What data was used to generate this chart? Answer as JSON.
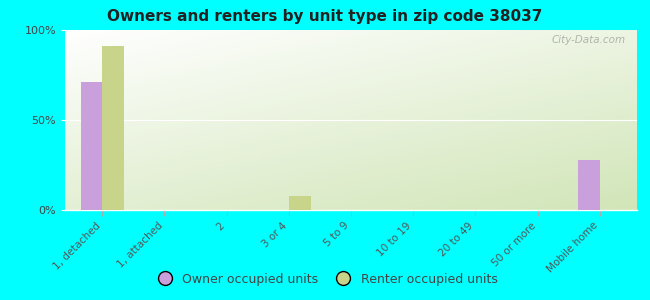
{
  "title": "Owners and renters by unit type in zip code 38037",
  "categories": [
    "1, detached",
    "1, attached",
    "2",
    "3 or 4",
    "5 to 9",
    "10 to 19",
    "20 to 49",
    "50 or more",
    "Mobile home"
  ],
  "owner_values": [
    71,
    0,
    0,
    0,
    0,
    0,
    0,
    0,
    28
  ],
  "renter_values": [
    91,
    0,
    0,
    8,
    0,
    0,
    0,
    0,
    0
  ],
  "owner_color": "#c9a0dc",
  "renter_color": "#c8d48a",
  "background_color": "#00ffff",
  "ylim": [
    0,
    100
  ],
  "yticks": [
    0,
    50,
    100
  ],
  "ytick_labels": [
    "0%",
    "50%",
    "100%"
  ],
  "bar_width": 0.35,
  "legend_owner": "Owner occupied units",
  "legend_renter": "Renter occupied units",
  "watermark": "City-Data.com"
}
